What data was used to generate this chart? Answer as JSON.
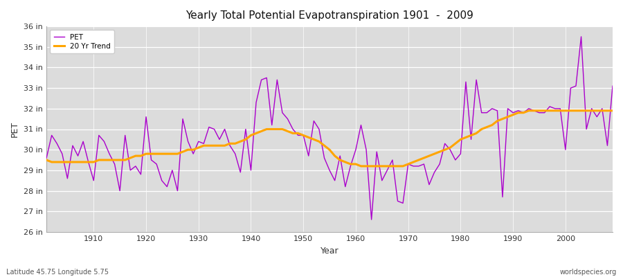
{
  "title": "Yearly Total Potential Evapotranspiration 1901  -  2009",
  "xlabel": "Year",
  "ylabel": "PET",
  "bottom_left": "Latitude 45.75 Longitude 5.75",
  "bottom_right": "worldspecies.org",
  "pet_color": "#AA00CC",
  "trend_color": "#FFA500",
  "fig_bg_color": "#FFFFFF",
  "plot_bg_color": "#DCDCDC",
  "ylim": [
    26,
    36
  ],
  "ytick_values": [
    26,
    27,
    28,
    29,
    30,
    31,
    32,
    33,
    34,
    35,
    36
  ],
  "years": [
    1901,
    1902,
    1903,
    1904,
    1905,
    1906,
    1907,
    1908,
    1909,
    1910,
    1911,
    1912,
    1913,
    1914,
    1915,
    1916,
    1917,
    1918,
    1919,
    1920,
    1921,
    1922,
    1923,
    1924,
    1925,
    1926,
    1927,
    1928,
    1929,
    1930,
    1931,
    1932,
    1933,
    1934,
    1935,
    1936,
    1937,
    1938,
    1939,
    1940,
    1941,
    1942,
    1943,
    1944,
    1945,
    1946,
    1947,
    1948,
    1949,
    1950,
    1951,
    1952,
    1953,
    1954,
    1955,
    1956,
    1957,
    1958,
    1959,
    1960,
    1961,
    1962,
    1963,
    1964,
    1965,
    1966,
    1967,
    1968,
    1969,
    1970,
    1971,
    1972,
    1973,
    1974,
    1975,
    1976,
    1977,
    1978,
    1979,
    1980,
    1981,
    1982,
    1983,
    1984,
    1985,
    1986,
    1987,
    1988,
    1989,
    1990,
    1991,
    1992,
    1993,
    1994,
    1995,
    1996,
    1997,
    1998,
    1999,
    2000,
    2001,
    2002,
    2003,
    2004,
    2005,
    2006,
    2007,
    2008,
    2009
  ],
  "pet_values": [
    29.6,
    30.7,
    30.3,
    29.8,
    28.6,
    30.2,
    29.7,
    30.4,
    29.4,
    28.5,
    30.7,
    30.4,
    29.8,
    29.3,
    28.0,
    30.7,
    29.0,
    29.2,
    28.8,
    31.6,
    29.5,
    29.3,
    28.5,
    28.2,
    29.0,
    28.0,
    31.5,
    30.4,
    29.8,
    30.4,
    30.3,
    31.1,
    31.0,
    30.5,
    31.0,
    30.2,
    29.8,
    28.9,
    31.0,
    29.0,
    32.3,
    33.4,
    33.5,
    31.2,
    33.4,
    31.8,
    31.5,
    31.0,
    30.7,
    30.7,
    29.7,
    31.4,
    31.0,
    29.6,
    29.0,
    28.5,
    29.7,
    28.2,
    29.2,
    30.0,
    31.2,
    30.0,
    26.6,
    29.9,
    28.5,
    29.0,
    29.5,
    27.5,
    27.4,
    29.3,
    29.2,
    29.2,
    29.3,
    28.3,
    28.9,
    29.3,
    30.3,
    30.0,
    29.5,
    29.8,
    33.3,
    30.5,
    33.4,
    31.8,
    31.8,
    32.0,
    31.9,
    27.7,
    32.0,
    31.8,
    31.9,
    31.8,
    32.0,
    31.9,
    31.8,
    31.8,
    32.1,
    32.0,
    32.0,
    30.0,
    33.0,
    33.1,
    35.5,
    31.0,
    32.0,
    31.6,
    32.0,
    30.2,
    33.1
  ],
  "trend_values": [
    29.5,
    29.4,
    29.4,
    29.4,
    29.4,
    29.4,
    29.4,
    29.4,
    29.4,
    29.4,
    29.5,
    29.5,
    29.5,
    29.5,
    29.5,
    29.5,
    29.6,
    29.7,
    29.7,
    29.8,
    29.8,
    29.8,
    29.8,
    29.8,
    29.8,
    29.8,
    29.9,
    30.0,
    30.0,
    30.1,
    30.2,
    30.2,
    30.2,
    30.2,
    30.2,
    30.3,
    30.3,
    30.4,
    30.5,
    30.7,
    30.8,
    30.9,
    31.0,
    31.0,
    31.0,
    31.0,
    30.9,
    30.8,
    30.8,
    30.7,
    30.6,
    30.5,
    30.4,
    30.2,
    30.0,
    29.7,
    29.5,
    29.4,
    29.3,
    29.3,
    29.2,
    29.2,
    29.2,
    29.2,
    29.2,
    29.2,
    29.2,
    29.2,
    29.2,
    29.3,
    29.4,
    29.5,
    29.6,
    29.7,
    29.8,
    29.9,
    30.0,
    30.1,
    30.3,
    30.5,
    30.6,
    30.7,
    30.8,
    31.0,
    31.1,
    31.2,
    31.4,
    31.5,
    31.6,
    31.7,
    31.8,
    31.8,
    31.9,
    31.9,
    31.9,
    31.9,
    31.9,
    31.9,
    31.9,
    31.9,
    31.9,
    31.9,
    31.9,
    31.9,
    31.9,
    31.9,
    31.9,
    31.9,
    31.9
  ]
}
